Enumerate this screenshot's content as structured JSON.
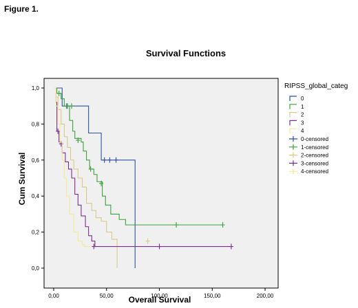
{
  "figure_label": "Figure 1.",
  "chart_data": {
    "type": "line",
    "title": "Survival Functions",
    "xlabel": "Overall Survival",
    "ylabel": "Cum Survival",
    "xlim": [
      0,
      200
    ],
    "ylim": [
      0,
      1
    ],
    "x_ticks": [
      "0,00",
      "50,00",
      "100,00",
      "150,00",
      "200,00"
    ],
    "y_ticks": [
      "0,0",
      "0,2",
      "0,4",
      "0,6",
      "0,8",
      "1,0"
    ],
    "grid": false,
    "legend_title": "RIPSS_global_categ",
    "legend_position": "right",
    "series": [
      {
        "name": "0",
        "color": "#2f4f9f",
        "steps": [
          [
            0,
            1.0
          ],
          [
            8,
            0.9
          ],
          [
            33,
            0.75
          ],
          [
            45,
            0.6
          ],
          [
            77,
            0.0
          ]
        ],
        "censored": [
          [
            13,
            0.9
          ],
          [
            48,
            0.6
          ],
          [
            53,
            0.6
          ],
          [
            59,
            0.6
          ]
        ]
      },
      {
        "name": "1",
        "color": "#3aa13a",
        "steps": [
          [
            0,
            1.0
          ],
          [
            3,
            0.97
          ],
          [
            7,
            0.94
          ],
          [
            10,
            0.9
          ],
          [
            15,
            0.82
          ],
          [
            18,
            0.76
          ],
          [
            20,
            0.72
          ],
          [
            26,
            0.7
          ],
          [
            28,
            0.65
          ],
          [
            31,
            0.6
          ],
          [
            34,
            0.55
          ],
          [
            38,
            0.52
          ],
          [
            41,
            0.48
          ],
          [
            46,
            0.4
          ],
          [
            49,
            0.35
          ],
          [
            54,
            0.3
          ],
          [
            62,
            0.27
          ],
          [
            68,
            0.24
          ],
          [
            160,
            0.24
          ]
        ],
        "censored": [
          [
            5,
            0.97
          ],
          [
            12,
            0.9
          ],
          [
            17,
            0.9
          ],
          [
            23,
            0.71
          ],
          [
            35,
            0.55
          ],
          [
            45,
            0.47
          ],
          [
            116,
            0.24
          ],
          [
            160,
            0.24
          ]
        ]
      },
      {
        "name": "2",
        "color": "#d9c98a",
        "steps": [
          [
            0,
            1.0
          ],
          [
            2,
            0.95
          ],
          [
            4,
            0.88
          ],
          [
            7,
            0.8
          ],
          [
            10,
            0.73
          ],
          [
            13,
            0.67
          ],
          [
            16,
            0.6
          ],
          [
            19,
            0.55
          ],
          [
            23,
            0.5
          ],
          [
            27,
            0.45
          ],
          [
            31,
            0.36
          ],
          [
            36,
            0.32
          ],
          [
            40,
            0.28
          ],
          [
            45,
            0.26
          ],
          [
            50,
            0.2
          ],
          [
            55,
            0.16
          ],
          [
            60,
            0.0
          ]
        ],
        "censored": [
          [
            89,
            0.15
          ]
        ]
      },
      {
        "name": "3",
        "color": "#7a2f8f",
        "steps": [
          [
            0,
            1.0
          ],
          [
            2,
            0.92
          ],
          [
            3,
            0.76
          ],
          [
            5,
            0.7
          ],
          [
            8,
            0.64
          ],
          [
            11,
            0.59
          ],
          [
            14,
            0.55
          ],
          [
            17,
            0.5
          ],
          [
            20,
            0.41
          ],
          [
            23,
            0.35
          ],
          [
            26,
            0.29
          ],
          [
            30,
            0.23
          ],
          [
            33,
            0.18
          ],
          [
            36,
            0.15
          ],
          [
            39,
            0.12
          ],
          [
            168,
            0.12
          ]
        ],
        "censored": [
          [
            4,
            0.76
          ],
          [
            7,
            0.69
          ],
          [
            38,
            0.12
          ],
          [
            100,
            0.12
          ],
          [
            168,
            0.12
          ]
        ]
      },
      {
        "name": "4",
        "color": "#f3ea9a",
        "steps": [
          [
            0,
            1.0
          ],
          [
            2,
            0.9
          ],
          [
            4,
            0.8
          ],
          [
            6,
            0.7
          ],
          [
            8,
            0.6
          ],
          [
            10,
            0.5
          ],
          [
            12,
            0.4
          ],
          [
            15,
            0.3
          ],
          [
            19,
            0.2
          ],
          [
            23,
            0.15
          ],
          [
            27,
            0.13
          ],
          [
            29,
            0.12
          ],
          [
            35,
            0.12
          ]
        ],
        "censored": []
      }
    ],
    "legend_entries": [
      {
        "label": "0",
        "color": "#2f4f9f",
        "kind": "step"
      },
      {
        "label": "1",
        "color": "#3aa13a",
        "kind": "step"
      },
      {
        "label": "2",
        "color": "#d9c98a",
        "kind": "step"
      },
      {
        "label": "3",
        "color": "#7a2f8f",
        "kind": "step"
      },
      {
        "label": "4",
        "color": "#f3ea9a",
        "kind": "step"
      },
      {
        "label": "0-censored",
        "color": "#2f4f9f",
        "kind": "censor"
      },
      {
        "label": "1-censored",
        "color": "#3aa13a",
        "kind": "censor"
      },
      {
        "label": "2-censored",
        "color": "#d9c98a",
        "kind": "censor"
      },
      {
        "label": "3-censored",
        "color": "#7a2f8f",
        "kind": "censor"
      },
      {
        "label": "4-censored",
        "color": "#f3ea9a",
        "kind": "censor"
      }
    ]
  }
}
